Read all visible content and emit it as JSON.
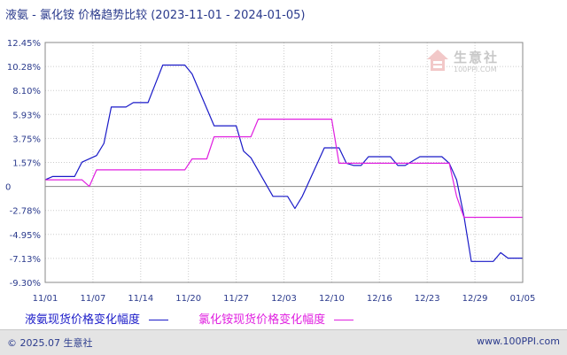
{
  "chart_data": {
    "type": "line",
    "title": "液氨 - 氯化铵 价格趋势比较",
    "date_range": "(2023-11-01 - 2024-01-05)",
    "x_tick_labels": [
      "11/01",
      "11/07",
      "11/14",
      "11/20",
      "11/27",
      "12/03",
      "12/10",
      "12/16",
      "12/23",
      "12/29",
      "01/05"
    ],
    "y_tick_labels": [
      "12.45%",
      "10.28%",
      "8.10%",
      "5.93%",
      "3.75%",
      "1.57%",
      "0",
      "-2.78%",
      "-4.95%",
      "-7.13%",
      "-9.30%"
    ],
    "ylim": [
      -9.3,
      12.45
    ],
    "grid": true,
    "legend_position": "bottom-left",
    "x_start": "2023-11-01",
    "series": [
      {
        "name": "液氨现货价格变化幅度",
        "color": "#1a1ac8",
        "points": [
          [
            "2023-11-01",
            0
          ],
          [
            "2023-11-02",
            0.3
          ],
          [
            "2023-11-05",
            0.3
          ],
          [
            "2023-11-06",
            1.6
          ],
          [
            "2023-11-08",
            2.2
          ],
          [
            "2023-11-09",
            3.3
          ],
          [
            "2023-11-10",
            6.6
          ],
          [
            "2023-11-12",
            6.6
          ],
          [
            "2023-11-13",
            7.0
          ],
          [
            "2023-11-15",
            7.0
          ],
          [
            "2023-11-16",
            8.7
          ],
          [
            "2023-11-17",
            10.4
          ],
          [
            "2023-11-20",
            10.4
          ],
          [
            "2023-11-21",
            9.6
          ],
          [
            "2023-11-24",
            4.9
          ],
          [
            "2023-11-27",
            4.9
          ],
          [
            "2023-11-28",
            2.6
          ],
          [
            "2023-11-29",
            2.0
          ],
          [
            "2023-12-02",
            -1.5
          ],
          [
            "2023-12-04",
            -1.5
          ],
          [
            "2023-12-05",
            -2.6
          ],
          [
            "2023-12-06",
            -1.5
          ],
          [
            "2023-12-09",
            2.9
          ],
          [
            "2023-12-11",
            2.9
          ],
          [
            "2023-12-12",
            1.5
          ],
          [
            "2023-12-13",
            1.3
          ],
          [
            "2023-12-14",
            1.3
          ],
          [
            "2023-12-15",
            2.1
          ],
          [
            "2023-12-18",
            2.1
          ],
          [
            "2023-12-19",
            1.3
          ],
          [
            "2023-12-20",
            1.3
          ],
          [
            "2023-12-22",
            2.1
          ],
          [
            "2023-12-25",
            2.1
          ],
          [
            "2023-12-26",
            1.5
          ],
          [
            "2023-12-27",
            0
          ],
          [
            "2023-12-28",
            -3.3
          ],
          [
            "2023-12-29",
            -7.4
          ],
          [
            "2024-01-01",
            -7.4
          ],
          [
            "2024-01-02",
            -6.6
          ],
          [
            "2024-01-03",
            -7.1
          ],
          [
            "2024-01-05",
            -7.1
          ]
        ]
      },
      {
        "name": "氯化铵现货价格变化幅度",
        "color": "#e020e0",
        "points": [
          [
            "2023-11-01",
            0
          ],
          [
            "2023-11-06",
            0
          ],
          [
            "2023-11-07",
            -0.6
          ],
          [
            "2023-11-08",
            0.9
          ],
          [
            "2023-11-20",
            0.9
          ],
          [
            "2023-11-21",
            1.9
          ],
          [
            "2023-11-23",
            1.9
          ],
          [
            "2023-11-24",
            3.9
          ],
          [
            "2023-11-29",
            3.9
          ],
          [
            "2023-11-30",
            5.5
          ],
          [
            "2023-12-10",
            5.5
          ],
          [
            "2023-12-11",
            1.5
          ],
          [
            "2023-12-26",
            1.5
          ],
          [
            "2023-12-27",
            -1.5
          ],
          [
            "2023-12-28",
            -3.4
          ],
          [
            "2024-01-05",
            -3.4
          ]
        ]
      }
    ]
  },
  "watermark": {
    "name": "生意社",
    "url": "100PPI.COM"
  },
  "footer": {
    "copyright": "© 2025.07 生意社",
    "site": "www.100PPI.com"
  }
}
